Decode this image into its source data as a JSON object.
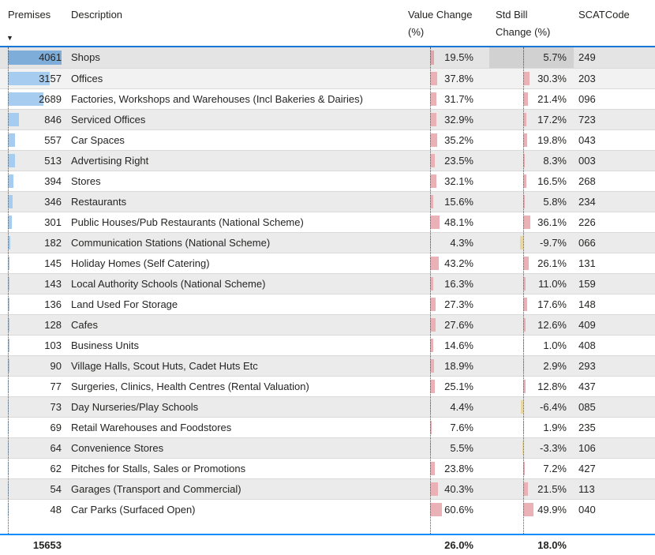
{
  "colors": {
    "accent_blue_header_line": "#1776d6",
    "accent_blue_total_line": "#118dff",
    "premises_bar": "#a6cdf0",
    "premises_bar_selected": "#7fadd9",
    "positive_bar": "#eab2b7",
    "negative_bar": "#e9d7a0",
    "band_gray": "#ebebeb",
    "selected_cell_bg": "#d1d1d1"
  },
  "icons": {
    "sort_descending": "▼"
  },
  "chart_data": {
    "type": "table",
    "columns": [
      "Premises",
      "Description",
      "Value Change (%)",
      "Std Bill Change (%)",
      "SCATCode"
    ],
    "sort": {
      "column": "Premises",
      "direction": "descending"
    },
    "selection": {
      "row_index": 0,
      "row": "Shops",
      "column": "Std Bill Change (%)"
    },
    "rows": [
      {
        "premises": 4061,
        "description": "Shops",
        "value_change": 19.5,
        "std_bill_change": 5.7,
        "scat": "249"
      },
      {
        "premises": 3157,
        "description": "Offices",
        "value_change": 37.8,
        "std_bill_change": 30.3,
        "scat": "203"
      },
      {
        "premises": 2689,
        "description": "Factories, Workshops and Warehouses (Incl Bakeries & Dairies)",
        "value_change": 31.7,
        "std_bill_change": 21.4,
        "scat": "096"
      },
      {
        "premises": 846,
        "description": "Serviced Offices",
        "value_change": 32.9,
        "std_bill_change": 17.2,
        "scat": "723"
      },
      {
        "premises": 557,
        "description": "Car Spaces",
        "value_change": 35.2,
        "std_bill_change": 19.8,
        "scat": "043"
      },
      {
        "premises": 513,
        "description": "Advertising Right",
        "value_change": 23.5,
        "std_bill_change": 8.3,
        "scat": "003"
      },
      {
        "premises": 394,
        "description": "Stores",
        "value_change": 32.1,
        "std_bill_change": 16.5,
        "scat": "268"
      },
      {
        "premises": 346,
        "description": "Restaurants",
        "value_change": 15.6,
        "std_bill_change": 5.8,
        "scat": "234"
      },
      {
        "premises": 301,
        "description": "Public Houses/Pub Restaurants (National Scheme)",
        "value_change": 48.1,
        "std_bill_change": 36.1,
        "scat": "226"
      },
      {
        "premises": 182,
        "description": "Communication Stations (National Scheme)",
        "value_change": 4.3,
        "std_bill_change": -9.7,
        "scat": "066"
      },
      {
        "premises": 145,
        "description": "Holiday Homes (Self Catering)",
        "value_change": 43.2,
        "std_bill_change": 26.1,
        "scat": "131"
      },
      {
        "premises": 143,
        "description": "Local Authority Schools (National Scheme)",
        "value_change": 16.3,
        "std_bill_change": 11.0,
        "scat": "159"
      },
      {
        "premises": 136,
        "description": "Land Used For Storage",
        "value_change": 27.3,
        "std_bill_change": 17.6,
        "scat": "148"
      },
      {
        "premises": 128,
        "description": "Cafes",
        "value_change": 27.6,
        "std_bill_change": 12.6,
        "scat": "409"
      },
      {
        "premises": 103,
        "description": "Business Units",
        "value_change": 14.6,
        "std_bill_change": 1.0,
        "scat": "408"
      },
      {
        "premises": 90,
        "description": "Village Halls, Scout Huts, Cadet Huts Etc",
        "value_change": 18.9,
        "std_bill_change": 2.9,
        "scat": "293"
      },
      {
        "premises": 77,
        "description": "Surgeries, Clinics, Health Centres (Rental Valuation)",
        "value_change": 25.1,
        "std_bill_change": 12.8,
        "scat": "437"
      },
      {
        "premises": 73,
        "description": "Day Nurseries/Play Schools",
        "value_change": 4.4,
        "std_bill_change": -6.4,
        "scat": "085"
      },
      {
        "premises": 69,
        "description": "Retail Warehouses and Foodstores",
        "value_change": 7.6,
        "std_bill_change": 1.9,
        "scat": "235"
      },
      {
        "premises": 64,
        "description": "Convenience Stores",
        "value_change": 5.5,
        "std_bill_change": -3.3,
        "scat": "106"
      },
      {
        "premises": 62,
        "description": "Pitches for Stalls, Sales or Promotions",
        "value_change": 23.8,
        "std_bill_change": 7.2,
        "scat": "427"
      },
      {
        "premises": 54,
        "description": "Garages (Transport and Commercial)",
        "value_change": 40.3,
        "std_bill_change": 21.5,
        "scat": "113"
      },
      {
        "premises": 48,
        "description": "Car Parks (Surfaced Open)",
        "value_change": 60.6,
        "std_bill_change": 49.9,
        "scat": "040"
      }
    ],
    "total": {
      "premises": "15653",
      "value_change": "26.0%",
      "std_bill_change": "18.0%"
    }
  }
}
